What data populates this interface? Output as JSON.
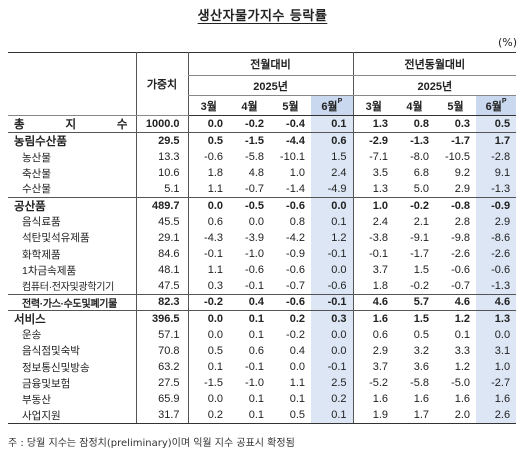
{
  "title": "생산자물가지수 등락률",
  "unit": "(%)",
  "headers": {
    "weight": "가중치",
    "mom": "전월대비",
    "yoy": "전년동월대비",
    "year": "2025년",
    "months": [
      "3월",
      "4월",
      "5월",
      "6월"
    ],
    "prelim_mark": "P"
  },
  "rows": [
    {
      "label": "총 지 수",
      "weight": "1000.0",
      "mom": [
        "0.0",
        "-0.2",
        "-0.4",
        "0.1"
      ],
      "yoy": [
        "1.3",
        "0.8",
        "0.3",
        "0.5"
      ],
      "level": "main"
    },
    {
      "label": "농림수산품",
      "weight": "29.5",
      "mom": [
        "0.5",
        "-1.5",
        "-4.4",
        "0.6"
      ],
      "yoy": [
        "-2.9",
        "-1.3",
        "-1.7",
        "1.7"
      ],
      "level": "main"
    },
    {
      "label": "농산물",
      "weight": "13.3",
      "mom": [
        "-0.6",
        "-5.8",
        "-10.1",
        "1.5"
      ],
      "yoy": [
        "-7.1",
        "-8.0",
        "-10.5",
        "-2.8"
      ],
      "level": "sub"
    },
    {
      "label": "축산물",
      "weight": "10.6",
      "mom": [
        "1.8",
        "4.8",
        "1.0",
        "2.4"
      ],
      "yoy": [
        "3.5",
        "6.8",
        "9.2",
        "9.1"
      ],
      "level": "sub"
    },
    {
      "label": "수산물",
      "weight": "5.1",
      "mom": [
        "1.1",
        "-0.7",
        "-1.4",
        "-4.9"
      ],
      "yoy": [
        "1.3",
        "5.0",
        "2.9",
        "-1.3"
      ],
      "level": "sub"
    },
    {
      "label": "공산품",
      "weight": "489.7",
      "mom": [
        "0.0",
        "-0.5",
        "-0.6",
        "0.0"
      ],
      "yoy": [
        "1.0",
        "-0.2",
        "-0.8",
        "-0.9"
      ],
      "level": "main"
    },
    {
      "label": "음식료품",
      "weight": "45.5",
      "mom": [
        "0.6",
        "0.0",
        "0.8",
        "0.1"
      ],
      "yoy": [
        "2.4",
        "2.1",
        "2.8",
        "2.9"
      ],
      "level": "sub"
    },
    {
      "label": "석탄및석유제품",
      "weight": "29.1",
      "mom": [
        "-4.3",
        "-3.9",
        "-4.2",
        "1.2"
      ],
      "yoy": [
        "-3.8",
        "-9.1",
        "-9.8",
        "-8.6"
      ],
      "level": "sub"
    },
    {
      "label": "화학제품",
      "weight": "84.6",
      "mom": [
        "-0.1",
        "-1.0",
        "-0.9",
        "-0.1"
      ],
      "yoy": [
        "-0.1",
        "-1.7",
        "-2.6",
        "-2.6"
      ],
      "level": "sub"
    },
    {
      "label": "1차금속제품",
      "weight": "48.1",
      "mom": [
        "1.1",
        "-0.6",
        "-0.6",
        "0.0"
      ],
      "yoy": [
        "3.7",
        "1.5",
        "-0.6",
        "-0.6"
      ],
      "level": "sub"
    },
    {
      "label": "컴퓨터·전자및광학기기",
      "weight": "47.5",
      "mom": [
        "0.3",
        "-0.1",
        "-0.7",
        "-0.6"
      ],
      "yoy": [
        "1.8",
        "-0.2",
        "-0.7",
        "-1.3"
      ],
      "level": "sub",
      "tight": true
    },
    {
      "label": "전력·가스·수도및폐기물",
      "weight": "82.3",
      "mom": [
        "-0.2",
        "0.4",
        "-0.6",
        "-0.1"
      ],
      "yoy": [
        "4.6",
        "5.7",
        "4.6",
        "4.6"
      ],
      "level": "main",
      "tight": true
    },
    {
      "label": "서비스",
      "weight": "396.5",
      "mom": [
        "0.0",
        "0.1",
        "0.2",
        "0.3"
      ],
      "yoy": [
        "1.6",
        "1.5",
        "1.2",
        "1.3"
      ],
      "level": "main"
    },
    {
      "label": "운송",
      "weight": "57.1",
      "mom": [
        "0.0",
        "0.1",
        "-0.2",
        "0.0"
      ],
      "yoy": [
        "0.6",
        "0.5",
        "0.1",
        "0.0"
      ],
      "level": "sub"
    },
    {
      "label": "음식점및숙박",
      "weight": "70.8",
      "mom": [
        "0.5",
        "0.6",
        "0.4",
        "0.0"
      ],
      "yoy": [
        "2.9",
        "3.2",
        "3.3",
        "3.1"
      ],
      "level": "sub"
    },
    {
      "label": "정보통신및방송",
      "weight": "63.2",
      "mom": [
        "0.1",
        "-0.1",
        "0.0",
        "-0.1"
      ],
      "yoy": [
        "3.7",
        "3.6",
        "1.2",
        "1.0"
      ],
      "level": "sub"
    },
    {
      "label": "금융및보험",
      "weight": "27.5",
      "mom": [
        "-1.5",
        "-1.0",
        "1.1",
        "2.5"
      ],
      "yoy": [
        "-5.2",
        "-5.8",
        "-5.0",
        "-2.7"
      ],
      "level": "sub"
    },
    {
      "label": "부동산",
      "weight": "65.9",
      "mom": [
        "0.0",
        "0.1",
        "0.1",
        "0.2"
      ],
      "yoy": [
        "1.6",
        "1.6",
        "1.6",
        "1.6"
      ],
      "level": "sub"
    },
    {
      "label": "사업지원",
      "weight": "31.7",
      "mom": [
        "0.2",
        "0.1",
        "0.5",
        "0.1"
      ],
      "yoy": [
        "1.9",
        "1.7",
        "2.0",
        "2.6"
      ],
      "level": "sub"
    }
  ],
  "footnote": "주 : 당월 지수는 잠정치(preliminary)이며 익월 지수 공표시 확정됨",
  "colors": {
    "highlight": "#dce6f4"
  }
}
